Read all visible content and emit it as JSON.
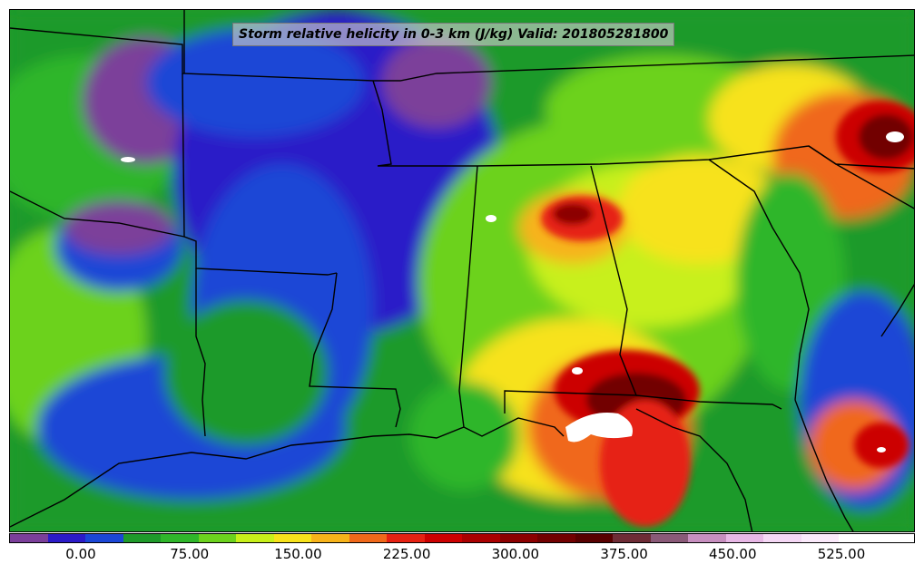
{
  "title": "Storm relative helicity in 0-3 km (J/kg) Valid: 201805281800",
  "colorbar": {
    "colors": [
      "#7b3f9a",
      "#2b1bc8",
      "#1b46d6",
      "#1f9a2a",
      "#2fb62a",
      "#6cd21e",
      "#c8f01a",
      "#f7e21b",
      "#f7b31a",
      "#f0681a",
      "#e62112",
      "#cc0000",
      "#aa0000",
      "#8c0000",
      "#720000",
      "#580000",
      "#6e2c36",
      "#8a5a78",
      "#c78fbf",
      "#e8b8e6",
      "#f5d8f5",
      "#fbeafb",
      "#ffffff",
      "#ffffff"
    ],
    "tick_labels": [
      "0.00",
      "75.00",
      "150.00",
      "225.00",
      "300.00",
      "375.00",
      "450.00",
      "525.00"
    ]
  }
}
